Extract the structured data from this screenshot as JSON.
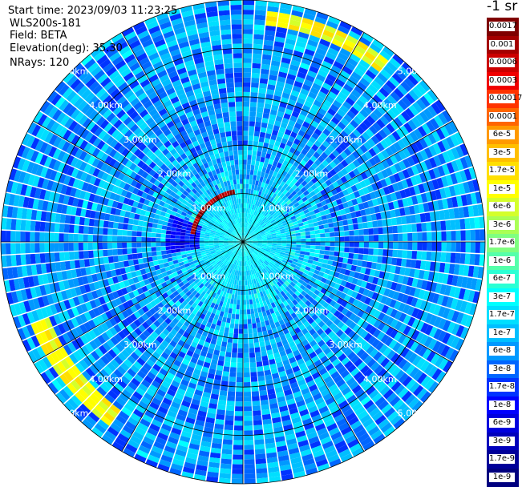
{
  "info": {
    "start_time": "Start time: 2023/09/03 11:23:25",
    "instrument": "WLS200s-181",
    "field": "Field: BETA",
    "elevation": "Elevation(deg): 35.30",
    "nrays": "NRays: 120"
  },
  "colorbar": {
    "unit": "-1 sr",
    "labels": [
      "0.0017",
      "0.001",
      "0.0006",
      "0.0003",
      "0.00017",
      "0.0001",
      "6e-5",
      "3e-5",
      "1.7e-5",
      "1e-5",
      "6e-6",
      "3e-6",
      "1.7e-6",
      "1e-6",
      "6e-7",
      "3e-7",
      "1.7e-7",
      "1e-7",
      "6e-8",
      "3e-8",
      "1.7e-8",
      "1e-8",
      "6e-9",
      "3e-9",
      "1.7e-9",
      "1e-9"
    ],
    "colors": [
      "#7f0000",
      "#a50000",
      "#cc0000",
      "#f00000",
      "#ff3300",
      "#ff6600",
      "#ff9900",
      "#ffbf00",
      "#ffdf00",
      "#ffff00",
      "#d4ff2b",
      "#aaff55",
      "#7fff80",
      "#55ffaa",
      "#2bffd4",
      "#00ffff",
      "#00dfff",
      "#00bfff",
      "#0099ff",
      "#0066ff",
      "#0033ff",
      "#0000ff",
      "#0000dd",
      "#0000bb",
      "#000099",
      "#00007f"
    ]
  },
  "chart_data": {
    "type": "heatmap",
    "projection": "polar PPI",
    "field": "BETA",
    "unit": "sr-1",
    "scale": "log",
    "value_range": [
      1e-09,
      0.0017
    ],
    "range_rings_km": [
      1,
      2,
      3,
      4,
      5
    ],
    "range_labels": [
      "1.00km",
      "2.00km",
      "3.00km",
      "4.00km",
      "5.00km"
    ],
    "max_range_km": 5.0,
    "nrays": 120,
    "azimuth_lines_every_deg": 30,
    "features": [
      {
        "desc": "strong near-range return (red/dark red) in NW sector",
        "range_km": [
          1.0,
          1.1
        ],
        "azimuth_deg": [
          280,
          350
        ],
        "beta": 0.001
      },
      {
        "desc": "arc of elevated backscatter NNE",
        "range_km": [
          4.5,
          4.8
        ],
        "azimuth_deg": [
          5,
          40
        ],
        "beta": 1e-05
      },
      {
        "desc": "arc of elevated backscatter SW",
        "range_km": [
          4.3,
          4.7
        ],
        "azimuth_deg": [
          215,
          250
        ],
        "beta": 1e-05
      },
      {
        "desc": "low backscatter (blue) patch W",
        "range_km": [
          0.9,
          1.6
        ],
        "azimuth_deg": [
          260,
          290
        ],
        "beta": 1e-08
      }
    ],
    "background_beta": {
      "near_range": 3e-07,
      "far_range": 6e-08
    }
  }
}
